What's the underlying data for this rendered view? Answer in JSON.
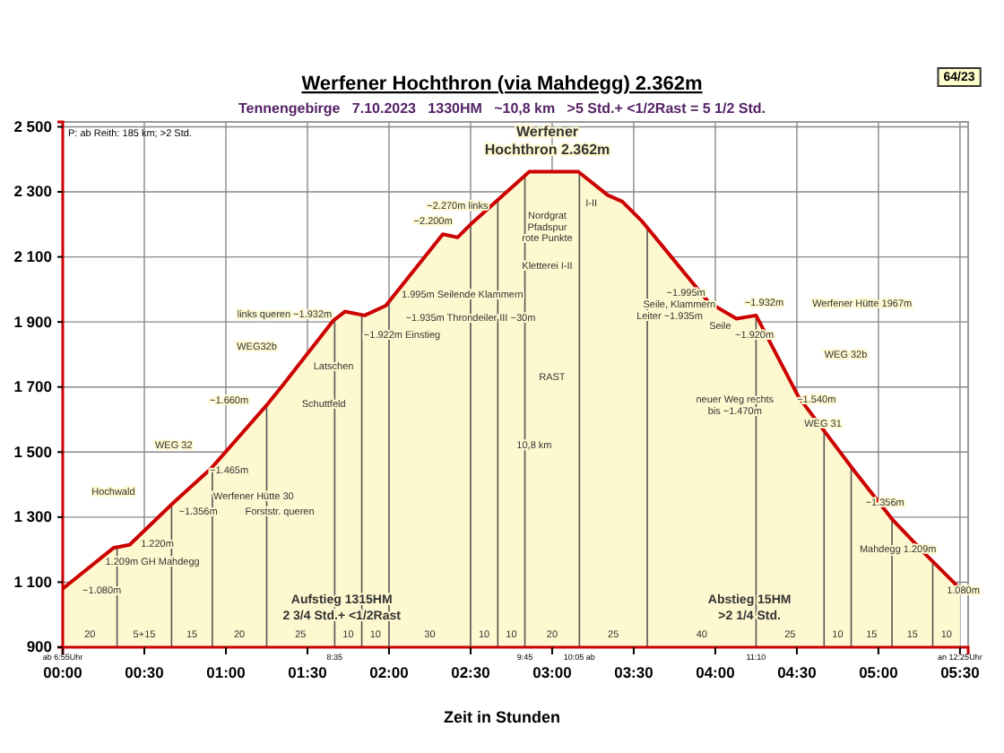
{
  "chart_data": {
    "type": "area",
    "title": "Werfener Hochthron (via Mahdegg) 2.362m",
    "subtitle": "Tennengebirge   7.10.2023   1330HM   ~10,8 km   >5 Std.+ <1/2Rast = 5 1/2 Std.",
    "xlabel": "Zeit in Stunden",
    "x": [
      0,
      0.31,
      0.41,
      0.68,
      0.91,
      1.26,
      1.34,
      1.66,
      1.73,
      1.85,
      1.98,
      2.33,
      2.42,
      2.5,
      2.86,
      3.16,
      3.34,
      3.43,
      3.55,
      3.96,
      4.13,
      4.25,
      4.51,
      4.84,
      5.09,
      5.3,
      5.5
    ],
    "series": [
      {
        "color": "#cc0000",
        "values": [
          1080,
          1205,
          1215,
          1345,
          1450,
          1650,
          1700,
          1905,
          1932,
          1920,
          1950,
          2170,
          2160,
          2200,
          2362,
          2362,
          2290,
          2270,
          2210,
          1960,
          1910,
          1920,
          1670,
          1450,
          1290,
          1180,
          1080
        ]
      }
    ],
    "xlim": [
      0,
      5.55
    ],
    "ylim": [
      900,
      2515
    ],
    "xticks": [
      {
        "value": 0,
        "label": "00:00"
      },
      {
        "value": 0.5,
        "label": "00:30"
      },
      {
        "value": 1,
        "label": "01:00"
      },
      {
        "value": 1.5,
        "label": "01:30"
      },
      {
        "value": 2,
        "label": "02:00"
      },
      {
        "value": 2.5,
        "label": "02:30"
      },
      {
        "value": 3,
        "label": "03:00"
      },
      {
        "value": 3.5,
        "label": "03:30"
      },
      {
        "value": 4,
        "label": "04:00"
      },
      {
        "value": 4.5,
        "label": "04:30"
      },
      {
        "value": 5,
        "label": "05:00"
      },
      {
        "value": 5.5,
        "label": "05:30"
      }
    ],
    "yticks": [
      {
        "value": 900,
        "label": "900"
      },
      {
        "value": 1100,
        "label": "1 100"
      },
      {
        "value": 1300,
        "label": "1 300"
      },
      {
        "value": 1500,
        "label": "1 500"
      },
      {
        "value": 1700,
        "label": "1 700"
      },
      {
        "value": 1900,
        "label": "1 900"
      },
      {
        "value": 2100,
        "label": "2 100"
      },
      {
        "value": 2300,
        "label": "2 300"
      },
      {
        "value": 2500,
        "label": "2 500"
      }
    ],
    "grid": true,
    "ref_lines": [
      {
        "axis": "x",
        "value": 0.333,
        "color": "#555555"
      },
      {
        "axis": "x",
        "value": 0.667,
        "color": "#555555"
      },
      {
        "axis": "x",
        "value": 0.917,
        "color": "#555555"
      },
      {
        "axis": "x",
        "value": 1.25,
        "color": "#555555"
      },
      {
        "axis": "x",
        "value": 1.667,
        "color": "#555555"
      },
      {
        "axis": "x",
        "value": 1.833,
        "color": "#555555"
      },
      {
        "axis": "x",
        "value": 2.0,
        "color": "#555555"
      },
      {
        "axis": "x",
        "value": 2.5,
        "color": "#555555"
      },
      {
        "axis": "x",
        "value": 2.667,
        "color": "#555555"
      },
      {
        "axis": "x",
        "value": 2.833,
        "color": "#555555"
      },
      {
        "axis": "x",
        "value": 3.167,
        "color": "#555555"
      },
      {
        "axis": "x",
        "value": 3.583,
        "color": "#555555"
      },
      {
        "axis": "x",
        "value": 4.25,
        "color": "#555555"
      },
      {
        "axis": "x",
        "value": 4.667,
        "color": "#555555"
      },
      {
        "axis": "x",
        "value": 4.833,
        "color": "#555555"
      },
      {
        "axis": "x",
        "value": 5.083,
        "color": "#555555"
      },
      {
        "axis": "x",
        "value": 5.333,
        "color": "#555555"
      }
    ],
    "annotations": [
      "64/23",
      "P: ab Reith: 185 km; >2 Std.",
      "Werfener",
      "Hochthron 2.362m",
      "~2.270m links",
      "~2.200m",
      "Nordgrat",
      "Pfadspur",
      "rote Punkte",
      "I-II",
      "Kletterei I-II",
      "RAST",
      "10,8 km",
      "links queren ~1.932m",
      "~1.922m Einstieg",
      "1.995m Seilende Klammern",
      "~1.935m Throndeiler III ~30m",
      "WEG32b",
      "Latschen",
      "~1.660m",
      "Schuttfeld",
      "WEG 32",
      "~1.465m",
      "Hochwald",
      "Werfener Hütte 30",
      "~1.356m",
      "Forststr. queren",
      "1.220m",
      "1.209m GH Mahdegg",
      "~1.080m",
      "Aufstieg 1315HM",
      "2 3/4 Std.+ <1/2Rast",
      "~1.995m",
      "Seile, Klammern",
      "Leiter ~1.935m",
      "Seile",
      "~1.932m",
      "Werfener Hütte 1967m",
      "~1.920m",
      "WEG 32b",
      "neuer Weg rechts",
      "bis ~1.470m",
      "~1.540m",
      "WEG 31",
      "~1.356m",
      "Mahdegg 1.209m",
      "1.080m",
      "Abstieg 15HM",
      ">2 1/4 Std.",
      "20",
      "5+15",
      "15",
      "20",
      "25",
      "10",
      "10",
      "30",
      "10",
      "10",
      "20",
      "25",
      "40",
      "25",
      "10",
      "15",
      "15",
      "10",
      "ab 6:55Uhr",
      "8:35",
      "9:45",
      "10:05 ab",
      "11:10",
      "an 12:25Uhr"
    ]
  }
}
